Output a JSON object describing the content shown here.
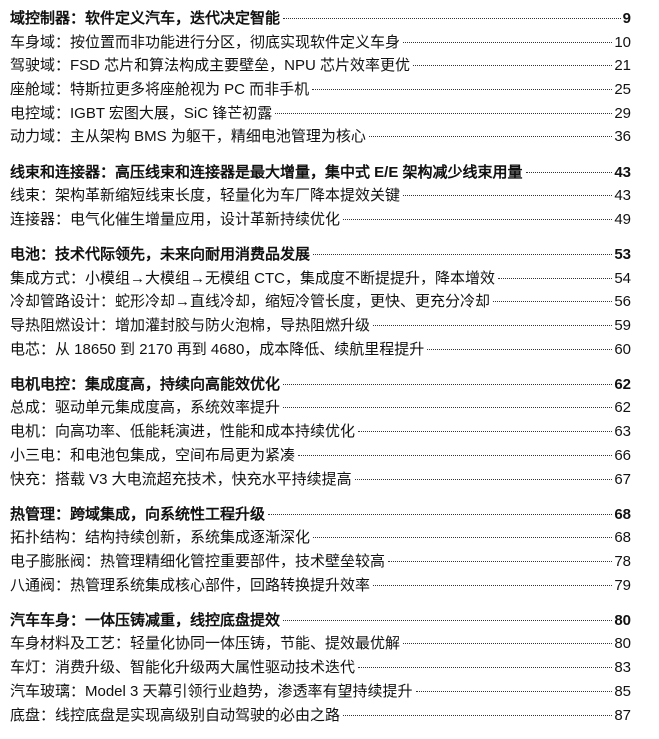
{
  "toc": [
    {
      "heading": {
        "title": "域控制器：软件定义汽车，迭代决定智能",
        "page": "9"
      },
      "items": [
        {
          "title": "车身域：按位置而非功能进行分区，彻底实现软件定义车身",
          "page": "10"
        },
        {
          "title": "驾驶域：FSD 芯片和算法构成主要壁垒，NPU 芯片效率更优",
          "page": "21"
        },
        {
          "title": "座舱域：特斯拉更多将座舱视为 PC 而非手机",
          "page": "25"
        },
        {
          "title": "电控域：IGBT 宏图大展，SiC 锋芒初露",
          "page": "29"
        },
        {
          "title": "动力域：主从架构 BMS 为躯干，精细电池管理为核心",
          "page": "36"
        }
      ]
    },
    {
      "heading": {
        "title": "线束和连接器：高压线束和连接器是最大增量，集中式 E/E 架构减少线束用量",
        "page": "43"
      },
      "items": [
        {
          "title": "线束：架构革新缩短线束长度，轻量化为车厂降本提效关键",
          "page": "43"
        },
        {
          "title": "连接器：电气化催生增量应用，设计革新持续优化",
          "page": "49"
        }
      ]
    },
    {
      "heading": {
        "title": "电池：技术代际领先，未来向耐用消费品发展",
        "page": "53"
      },
      "items": [
        {
          "title": "集成方式：小模组→大模组→无模组 CTC，集成度不断提提升，降本增效",
          "page": "54"
        },
        {
          "title": "冷却管路设计：蛇形冷却→直线冷却，缩短冷管长度，更快、更充分冷却",
          "page": "56"
        },
        {
          "title": "导热阻燃设计：增加灌封胶与防火泡棉，导热阻燃升级",
          "page": "59"
        },
        {
          "title": "电芯：从 18650 到 2170 再到 4680，成本降低、续航里程提升",
          "page": "60"
        }
      ]
    },
    {
      "heading": {
        "title": "电机电控：集成度高，持续向高能效优化",
        "page": "62"
      },
      "items": [
        {
          "title": "总成：驱动单元集成度高，系统效率提升",
          "page": "62"
        },
        {
          "title": "电机：向高功率、低能耗演进，性能和成本持续优化",
          "page": "63"
        },
        {
          "title": "小三电：和电池包集成，空间布局更为紧凑",
          "page": "66"
        },
        {
          "title": "快充：搭载 V3 大电流超充技术，快充水平持续提高",
          "page": "67"
        }
      ]
    },
    {
      "heading": {
        "title": "热管理：跨域集成，向系统性工程升级",
        "page": "68"
      },
      "items": [
        {
          "title": "拓扑结构：结构持续创新，系统集成逐渐深化",
          "page": "68"
        },
        {
          "title": "电子膨胀阀：热管理精细化管控重要部件，技术壁垒较高",
          "page": "78"
        },
        {
          "title": "八通阀：热管理系统集成核心部件，回路转换提升效率",
          "page": "79"
        }
      ]
    },
    {
      "heading": {
        "title": "汽车车身：一体压铸减重，线控底盘提效",
        "page": "80"
      },
      "items": [
        {
          "title": "车身材料及工艺：轻量化协同一体压铸，节能、提效最优解",
          "page": "80"
        },
        {
          "title": "车灯：消费升级、智能化升级两大属性驱动技术迭代",
          "page": "83"
        },
        {
          "title": "汽车玻璃：Model 3 天幕引领行业趋势，渗透率有望持续提升",
          "page": "85"
        },
        {
          "title": "底盘：线控底盘是实现高级别自动驾驶的必由之路",
          "page": "87"
        }
      ]
    }
  ]
}
